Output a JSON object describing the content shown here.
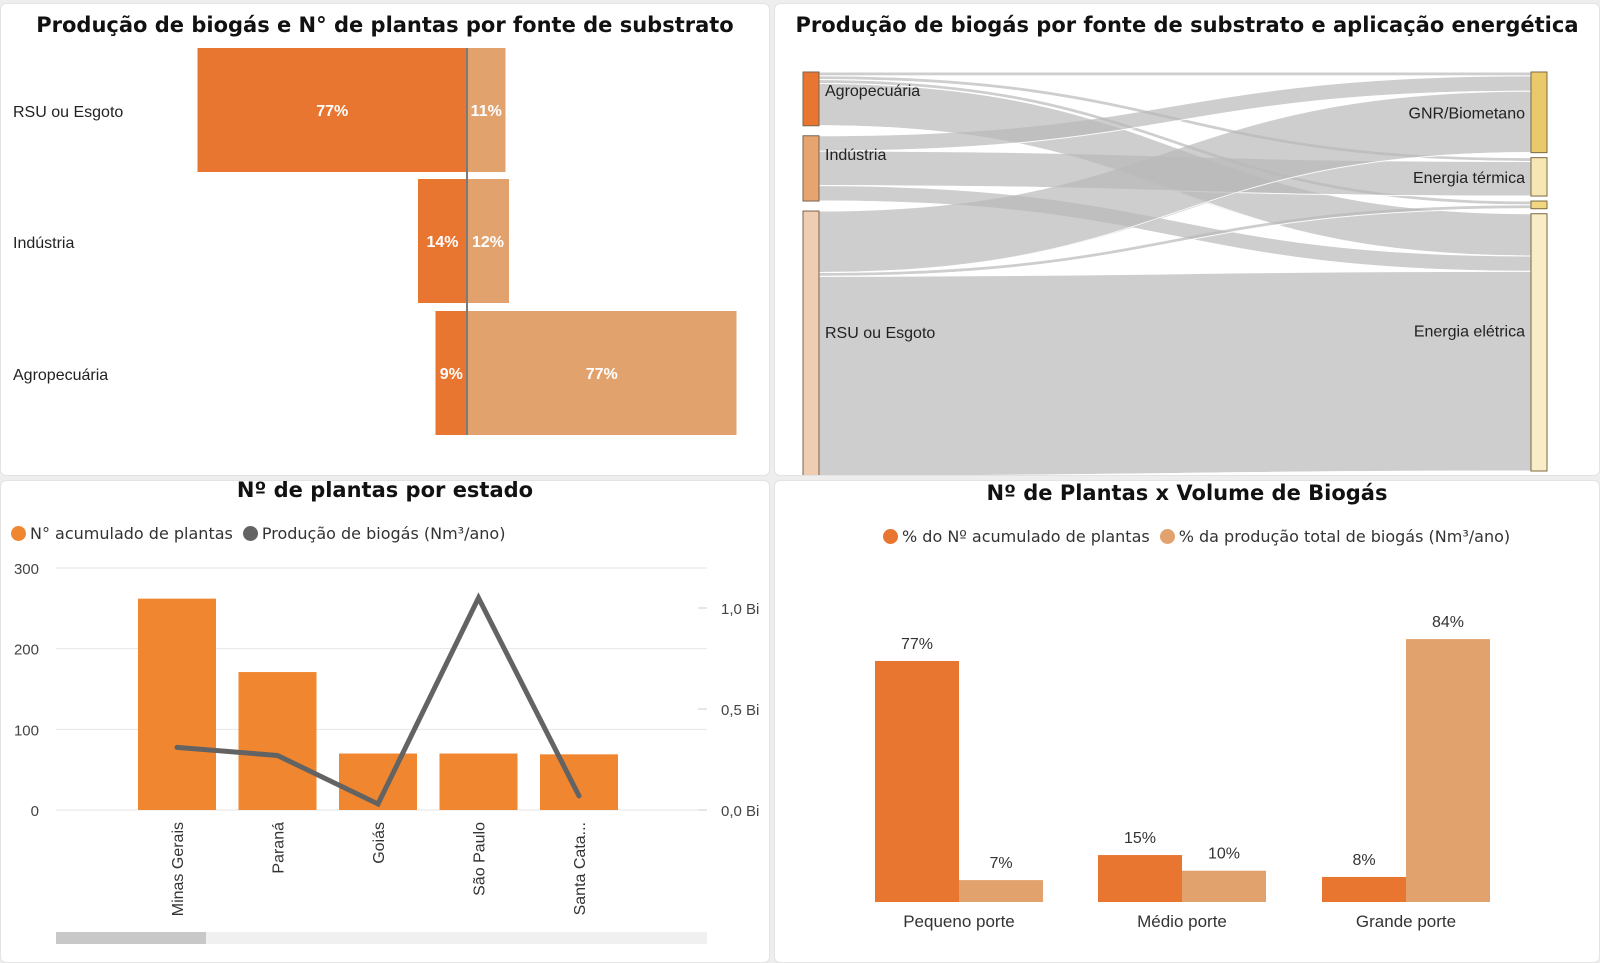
{
  "colors": {
    "orange_dark": "#e87530",
    "orange_light": "#e2a26e",
    "line_gray": "#636363",
    "flow_gray": "#b9b9b9"
  },
  "chart_data": [
    {
      "type": "bar",
      "title": "Produção de biogás e N° de plantas por fonte de substrato",
      "orientation": "horizontal-diverging",
      "categories": [
        "RSU ou Esgoto",
        "Indústria",
        "Agropecuária"
      ],
      "series": [
        {
          "values": [
            77,
            14,
            9
          ],
          "labels": [
            "77%",
            "14%",
            "9%"
          ],
          "color": "#e87530",
          "side": "left"
        },
        {
          "values": [
            11,
            12,
            77
          ],
          "labels": [
            "11%",
            "12%",
            "77%"
          ],
          "color": "#e2a26e",
          "side": "right"
        }
      ]
    },
    {
      "type": "sankey",
      "title": "Produção de biogás por fonte de substrato e aplicação energética",
      "sources": [
        {
          "name": "Agropecuária",
          "value": 14,
          "color": "#e87530"
        },
        {
          "name": "Indústria",
          "value": 17,
          "color": "#e5a470"
        },
        {
          "name": "RSU ou Esgoto",
          "value": 69,
          "color": "#efcdb3"
        }
      ],
      "targets": [
        {
          "name": "GNR/Biometano",
          "value": 21,
          "color": "#eac96a"
        },
        {
          "name": "Energia térmica",
          "value": 10,
          "color": "#f6e6b4"
        },
        {
          "name": "",
          "value": 2,
          "color": "#f2d780"
        },
        {
          "name": "Energia elétrica",
          "value": 67,
          "color": "#f8edc6"
        }
      ],
      "links": [
        {
          "source": 0,
          "target": 0,
          "value": 1
        },
        {
          "source": 0,
          "target": 1,
          "value": 1
        },
        {
          "source": 0,
          "target": 2,
          "value": 1
        },
        {
          "source": 0,
          "target": 3,
          "value": 11
        },
        {
          "source": 1,
          "target": 0,
          "value": 4
        },
        {
          "source": 1,
          "target": 1,
          "value": 9
        },
        {
          "source": 1,
          "target": 3,
          "value": 4
        },
        {
          "source": 2,
          "target": 0,
          "value": 16
        },
        {
          "source": 2,
          "target": 2,
          "value": 1
        },
        {
          "source": 2,
          "target": 3,
          "value": 52
        }
      ]
    },
    {
      "type": "bar+line",
      "title": "Nº de plantas por estado",
      "categories": [
        "Minas Gerais",
        "Paraná",
        "Goiás",
        "São Paulo",
        "Santa Cata..."
      ],
      "series": [
        {
          "name": "N° acumulado de plantas",
          "type": "bar",
          "axis": "left",
          "values": [
            262,
            171,
            70,
            70,
            69
          ],
          "color": "#f0862f"
        },
        {
          "name": "Produção de biogás (Nm³/ano)",
          "type": "line",
          "axis": "right",
          "values": [
            0.31,
            0.27,
            0.03,
            1.05,
            0.07
          ],
          "color": "#636363"
        }
      ],
      "yleft": {
        "ticks": [
          0,
          100,
          200,
          300
        ],
        "tick_labels": [
          "0",
          "100",
          "200",
          "300"
        ],
        "ylim": [
          0,
          300
        ]
      },
      "yright": {
        "ticks": [
          0,
          0.5,
          1.0
        ],
        "tick_labels": [
          "0,0 Bi",
          "0,5 Bi",
          "1,0 Bi"
        ],
        "ylim": [
          0,
          1.2
        ]
      },
      "legend": "top-left",
      "grid": true
    },
    {
      "type": "bar",
      "title": "Nº de Plantas x Volume de Biogás",
      "categories": [
        "Pequeno porte",
        "Médio porte",
        "Grande porte"
      ],
      "series": [
        {
          "name": "% do Nº acumulado de plantas",
          "values": [
            77,
            15,
            8
          ],
          "labels": [
            "77%",
            "15%",
            "8%"
          ],
          "color": "#e87530"
        },
        {
          "name": "% da produção total de biogás (Nm³/ano)",
          "values": [
            7,
            10,
            84
          ],
          "labels": [
            "7%",
            "10%",
            "84%"
          ],
          "color": "#e2a26e"
        }
      ],
      "legend": "top-center",
      "ylim": [
        0,
        90
      ]
    }
  ]
}
